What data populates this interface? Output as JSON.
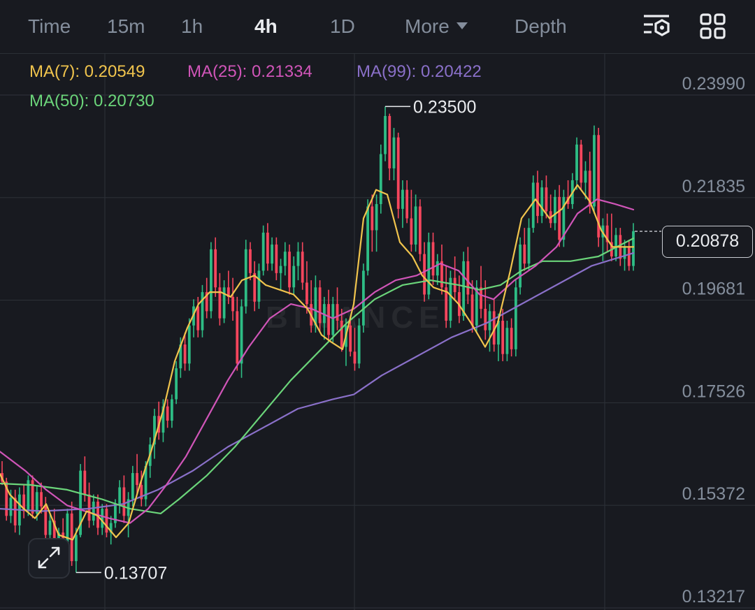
{
  "toolbar": {
    "time": "Time",
    "intervals": [
      "15m",
      "1h",
      "4h",
      "1D"
    ],
    "active_interval": "4h",
    "more": "More",
    "depth": "Depth",
    "icons": [
      "chart-settings-icon",
      "layout-grid-icon"
    ]
  },
  "indicators": {
    "ma7": {
      "label": "MA(7): 0.20549",
      "color": "#f0c44d"
    },
    "ma25": {
      "label": "MA(25): 0.21334",
      "color": "#d055b8"
    },
    "ma99": {
      "label": "MA(99): 0.20422",
      "color": "#8a70c9"
    },
    "ma50": {
      "label": "MA(50): 0.20730",
      "color": "#6bd57a"
    }
  },
  "chart_data": {
    "type": "candlestick",
    "y_axis_ticks": [
      "0.23990",
      "0.21835",
      "0.19681",
      "0.17526",
      "0.15372",
      "0.13217"
    ],
    "ylim": [
      0.13217,
      0.2399
    ],
    "current_price": "0.20878",
    "high_marker": "0.23500",
    "low_marker": "0.13707",
    "watermark": "BINANCE",
    "colors": {
      "up": "#2ebd85",
      "down": "#f6465d",
      "grid": "#2b2f36"
    },
    "candles": [
      [
        0.158,
        0.1605,
        0.1555,
        0.1562
      ],
      [
        0.1562,
        0.157,
        0.148,
        0.149
      ],
      [
        0.149,
        0.1545,
        0.1475,
        0.1528
      ],
      [
        0.1528,
        0.1545,
        0.1455,
        0.147
      ],
      [
        0.147,
        0.155,
        0.145,
        0.1535
      ],
      [
        0.1535,
        0.1555,
        0.1485,
        0.15
      ],
      [
        0.15,
        0.1575,
        0.149,
        0.1565
      ],
      [
        0.1565,
        0.1575,
        0.1485,
        0.1495
      ],
      [
        0.1495,
        0.1555,
        0.148,
        0.154
      ],
      [
        0.154,
        0.156,
        0.1495,
        0.151
      ],
      [
        0.151,
        0.153,
        0.1435,
        0.145
      ],
      [
        0.145,
        0.1495,
        0.143,
        0.148
      ],
      [
        0.148,
        0.1505,
        0.1415,
        0.1425
      ],
      [
        0.1425,
        0.1465,
        0.1395,
        0.1455
      ],
      [
        0.1455,
        0.1485,
        0.1395,
        0.1415
      ],
      [
        0.1415,
        0.1505,
        0.1405,
        0.1495
      ],
      [
        0.1495,
        0.152,
        0.1385,
        0.1395
      ],
      [
        0.1395,
        0.1465,
        0.1371,
        0.145
      ],
      [
        0.145,
        0.1599,
        0.1445,
        0.1585
      ],
      [
        0.1585,
        0.1615,
        0.152,
        0.1535
      ],
      [
        0.1535,
        0.156,
        0.1465,
        0.148
      ],
      [
        0.148,
        0.1535,
        0.147,
        0.152
      ],
      [
        0.152,
        0.1535,
        0.145,
        0.1465
      ],
      [
        0.1465,
        0.1515,
        0.145,
        0.1505
      ],
      [
        0.1505,
        0.1515,
        0.1445,
        0.1455
      ],
      [
        0.1455,
        0.149,
        0.143,
        0.1475
      ],
      [
        0.1475,
        0.1525,
        0.1465,
        0.1515
      ],
      [
        0.1515,
        0.1565,
        0.1495,
        0.155
      ],
      [
        0.155,
        0.1575,
        0.1475,
        0.149
      ],
      [
        0.149,
        0.154,
        0.1445,
        0.1525
      ],
      [
        0.1525,
        0.1595,
        0.151,
        0.158
      ],
      [
        0.158,
        0.162,
        0.1535,
        0.1555
      ],
      [
        0.1555,
        0.1585,
        0.151,
        0.1525
      ],
      [
        0.1525,
        0.1605,
        0.151,
        0.1595
      ],
      [
        0.1595,
        0.1655,
        0.157,
        0.164
      ],
      [
        0.164,
        0.1715,
        0.161,
        0.17
      ],
      [
        0.17,
        0.173,
        0.165,
        0.1665
      ],
      [
        0.1665,
        0.1735,
        0.1645,
        0.172
      ],
      [
        0.172,
        0.1735,
        0.1675,
        0.169
      ],
      [
        0.169,
        0.1745,
        0.1675,
        0.1735
      ],
      [
        0.1735,
        0.1815,
        0.1725,
        0.18
      ],
      [
        0.18,
        0.1865,
        0.178,
        0.185
      ],
      [
        0.185,
        0.1875,
        0.1795,
        0.181
      ],
      [
        0.181,
        0.1905,
        0.1795,
        0.189
      ],
      [
        0.189,
        0.1945,
        0.1865,
        0.193
      ],
      [
        0.193,
        0.195,
        0.1865,
        0.188
      ],
      [
        0.188,
        0.1975,
        0.1865,
        0.196
      ],
      [
        0.196,
        0.199,
        0.1905,
        0.192
      ],
      [
        0.192,
        0.2065,
        0.1905,
        0.205
      ],
      [
        0.205,
        0.2075,
        0.195,
        0.197
      ],
      [
        0.197,
        0.2,
        0.189,
        0.1905
      ],
      [
        0.1905,
        0.1985,
        0.1895,
        0.197
      ],
      [
        0.197,
        0.2005,
        0.1935,
        0.195
      ],
      [
        0.195,
        0.199,
        0.19,
        0.192
      ],
      [
        0.192,
        0.195,
        0.1795,
        0.181
      ],
      [
        0.181,
        0.1945,
        0.178,
        0.193
      ],
      [
        0.193,
        0.207,
        0.1915,
        0.205
      ],
      [
        0.205,
        0.2065,
        0.1985,
        0.2
      ],
      [
        0.2,
        0.2025,
        0.192,
        0.194
      ],
      [
        0.194,
        0.202,
        0.1925,
        0.2005
      ],
      [
        0.2005,
        0.21,
        0.1995,
        0.2085
      ],
      [
        0.2085,
        0.2105,
        0.2005,
        0.202
      ],
      [
        0.202,
        0.2075,
        0.2005,
        0.206
      ],
      [
        0.206,
        0.2075,
        0.1985,
        0.2
      ],
      [
        0.2,
        0.203,
        0.1965,
        0.2015
      ],
      [
        0.2015,
        0.2065,
        0.1995,
        0.2045
      ],
      [
        0.2045,
        0.206,
        0.1955,
        0.197
      ],
      [
        0.197,
        0.2035,
        0.1955,
        0.2015
      ],
      [
        0.2015,
        0.2065,
        0.1985,
        0.2045
      ],
      [
        0.2045,
        0.2065,
        0.1965,
        0.198
      ],
      [
        0.198,
        0.2025,
        0.1915,
        0.1935
      ],
      [
        0.1935,
        0.1985,
        0.1875,
        0.189
      ],
      [
        0.189,
        0.1995,
        0.1875,
        0.197
      ],
      [
        0.197,
        0.1985,
        0.1875,
        0.1895
      ],
      [
        0.1895,
        0.195,
        0.186,
        0.1935
      ],
      [
        0.1935,
        0.1965,
        0.1855,
        0.187
      ],
      [
        0.187,
        0.195,
        0.1855,
        0.1935
      ],
      [
        0.1935,
        0.197,
        0.188,
        0.19
      ],
      [
        0.19,
        0.1925,
        0.1835,
        0.1845
      ],
      [
        0.1845,
        0.1905,
        0.1805,
        0.189
      ],
      [
        0.189,
        0.1905,
        0.1825,
        0.1835
      ],
      [
        0.1835,
        0.1885,
        0.1795,
        0.181
      ],
      [
        0.181,
        0.1905,
        0.18,
        0.189
      ],
      [
        0.189,
        0.202,
        0.1875,
        0.2005
      ],
      [
        0.2005,
        0.2155,
        0.1995,
        0.214
      ],
      [
        0.214,
        0.2165,
        0.2045,
        0.209
      ],
      [
        0.209,
        0.2165,
        0.2045,
        0.2145
      ],
      [
        0.2145,
        0.227,
        0.2125,
        0.225
      ],
      [
        0.225,
        0.235,
        0.2235,
        0.233
      ],
      [
        0.233,
        0.2335,
        0.2195,
        0.222
      ],
      [
        0.222,
        0.2305,
        0.2195,
        0.2285
      ],
      [
        0.2285,
        0.2295,
        0.2115,
        0.2135
      ],
      [
        0.2135,
        0.2195,
        0.2095,
        0.2175
      ],
      [
        0.2175,
        0.2195,
        0.2105,
        0.2115
      ],
      [
        0.2115,
        0.2175,
        0.2045,
        0.206
      ],
      [
        0.206,
        0.2165,
        0.2045,
        0.214
      ],
      [
        0.214,
        0.2155,
        0.2025,
        0.204
      ],
      [
        0.204,
        0.2065,
        0.194,
        0.1955
      ],
      [
        0.1955,
        0.2085,
        0.1945,
        0.2065
      ],
      [
        0.2065,
        0.2085,
        0.1975,
        0.1995
      ],
      [
        0.1995,
        0.204,
        0.1975,
        0.2025
      ],
      [
        0.2025,
        0.206,
        0.1955,
        0.197
      ],
      [
        0.197,
        0.2015,
        0.1885,
        0.19
      ],
      [
        0.19,
        0.2005,
        0.1885,
        0.199
      ],
      [
        0.199,
        0.2035,
        0.1945,
        0.196
      ],
      [
        0.196,
        0.1995,
        0.1895,
        0.191
      ],
      [
        0.191,
        0.2045,
        0.19,
        0.2025
      ],
      [
        0.2025,
        0.2055,
        0.1935,
        0.1955
      ],
      [
        0.1955,
        0.1985,
        0.1875,
        0.189
      ],
      [
        0.189,
        0.1985,
        0.1875,
        0.197
      ],
      [
        0.197,
        0.2015,
        0.1905,
        0.1925
      ],
      [
        0.1925,
        0.1985,
        0.186,
        0.188
      ],
      [
        0.188,
        0.1935,
        0.1835,
        0.192
      ],
      [
        0.192,
        0.1945,
        0.1835,
        0.185
      ],
      [
        0.185,
        0.1915,
        0.1815,
        0.19
      ],
      [
        0.19,
        0.1925,
        0.1815,
        0.183
      ],
      [
        0.183,
        0.19,
        0.1815,
        0.1885
      ],
      [
        0.1885,
        0.1905,
        0.1825,
        0.184
      ],
      [
        0.184,
        0.1985,
        0.1825,
        0.197
      ],
      [
        0.197,
        0.2075,
        0.1955,
        0.206
      ],
      [
        0.206,
        0.2095,
        0.2005,
        0.202
      ],
      [
        0.202,
        0.2115,
        0.2005,
        0.2095
      ],
      [
        0.2095,
        0.2205,
        0.2085,
        0.219
      ],
      [
        0.219,
        0.2215,
        0.2105,
        0.212
      ],
      [
        0.212,
        0.2195,
        0.2105,
        0.218
      ],
      [
        0.218,
        0.2205,
        0.2115,
        0.213
      ],
      [
        0.213,
        0.2165,
        0.2095,
        0.2105
      ],
      [
        0.2105,
        0.2175,
        0.209,
        0.216
      ],
      [
        0.216,
        0.2185,
        0.2055,
        0.207
      ],
      [
        0.207,
        0.2175,
        0.2055,
        0.216
      ],
      [
        0.216,
        0.2195,
        0.2135,
        0.2145
      ],
      [
        0.2145,
        0.221,
        0.2135,
        0.2195
      ],
      [
        0.2195,
        0.2285,
        0.2175,
        0.227
      ],
      [
        0.227,
        0.228,
        0.2175,
        0.219
      ],
      [
        0.219,
        0.2235,
        0.2155,
        0.2215
      ],
      [
        0.2215,
        0.2255,
        0.2125,
        0.214
      ],
      [
        0.214,
        0.231,
        0.2125,
        0.229
      ],
      [
        0.229,
        0.2305,
        0.2055,
        0.2075
      ],
      [
        0.2075,
        0.2115,
        0.2025,
        0.21
      ],
      [
        0.21,
        0.2125,
        0.2045,
        0.2065
      ],
      [
        0.2065,
        0.2125,
        0.2025,
        0.2035
      ],
      [
        0.2035,
        0.2095,
        0.2025,
        0.208
      ],
      [
        0.208,
        0.2095,
        0.2015,
        0.203
      ],
      [
        0.203,
        0.207,
        0.2005,
        0.2055
      ],
      [
        0.2055,
        0.207,
        0.2005,
        0.2015
      ],
      [
        0.2015,
        0.2105,
        0.2005,
        0.2088
      ]
    ],
    "series": {
      "ma7": [
        [
          0,
          0.1578
        ],
        [
          14,
          0.1535
        ],
        [
          34,
          0.1505
        ],
        [
          50,
          0.1485
        ],
        [
          66,
          0.1515
        ],
        [
          84,
          0.145
        ],
        [
          104,
          0.144
        ],
        [
          124,
          0.15
        ],
        [
          140,
          0.149
        ],
        [
          166,
          0.1445
        ],
        [
          184,
          0.1475
        ],
        [
          200,
          0.1555
        ],
        [
          216,
          0.1625
        ],
        [
          234,
          0.1715
        ],
        [
          250,
          0.1815
        ],
        [
          268,
          0.1885
        ],
        [
          284,
          0.1935
        ],
        [
          300,
          0.196
        ],
        [
          316,
          0.196
        ],
        [
          330,
          0.195
        ],
        [
          346,
          0.1985
        ],
        [
          364,
          0.1995
        ],
        [
          380,
          0.1975
        ],
        [
          400,
          0.1965
        ],
        [
          420,
          0.1955
        ],
        [
          440,
          0.1925
        ],
        [
          460,
          0.187
        ],
        [
          474,
          0.1855
        ],
        [
          490,
          0.184
        ],
        [
          506,
          0.1935
        ],
        [
          520,
          0.2115
        ],
        [
          538,
          0.2175
        ],
        [
          554,
          0.2165
        ],
        [
          572,
          0.2065
        ],
        [
          590,
          0.2035
        ],
        [
          604,
          0.1995
        ],
        [
          620,
          0.197
        ],
        [
          640,
          0.196
        ],
        [
          656,
          0.1935
        ],
        [
          676,
          0.189
        ],
        [
          694,
          0.1845
        ],
        [
          712,
          0.1895
        ],
        [
          730,
          0.2005
        ],
        [
          746,
          0.2115
        ],
        [
          766,
          0.2155
        ],
        [
          786,
          0.2115
        ],
        [
          804,
          0.2135
        ],
        [
          826,
          0.2185
        ],
        [
          844,
          0.215
        ],
        [
          860,
          0.209
        ],
        [
          876,
          0.2055
        ],
        [
          894,
          0.2055
        ],
        [
          906,
          0.20549
        ]
      ],
      "ma25": [
        [
          0,
          0.1625
        ],
        [
          36,
          0.1585
        ],
        [
          66,
          0.1545
        ],
        [
          96,
          0.1512
        ],
        [
          126,
          0.1498
        ],
        [
          156,
          0.1485
        ],
        [
          186,
          0.1475
        ],
        [
          212,
          0.1505
        ],
        [
          238,
          0.1555
        ],
        [
          266,
          0.1615
        ],
        [
          296,
          0.1695
        ],
        [
          326,
          0.1775
        ],
        [
          356,
          0.1845
        ],
        [
          386,
          0.1905
        ],
        [
          416,
          0.1935
        ],
        [
          446,
          0.1925
        ],
        [
          476,
          0.1905
        ],
        [
          506,
          0.1925
        ],
        [
          536,
          0.196
        ],
        [
          566,
          0.1985
        ],
        [
          596,
          0.1995
        ],
        [
          630,
          0.202
        ],
        [
          656,
          0.2005
        ],
        [
          686,
          0.1955
        ],
        [
          706,
          0.1945
        ],
        [
          736,
          0.1985
        ],
        [
          766,
          0.2015
        ],
        [
          796,
          0.2055
        ],
        [
          826,
          0.2125
        ],
        [
          854,
          0.2155
        ],
        [
          880,
          0.2145
        ],
        [
          906,
          0.21334
        ]
      ],
      "ma50": [
        [
          0,
          0.1558
        ],
        [
          44,
          0.1555
        ],
        [
          96,
          0.1545
        ],
        [
          146,
          0.1525
        ],
        [
          186,
          0.1505
        ],
        [
          230,
          0.1495
        ],
        [
          256,
          0.1525
        ],
        [
          296,
          0.1575
        ],
        [
          336,
          0.1635
        ],
        [
          376,
          0.1705
        ],
        [
          416,
          0.1775
        ],
        [
          456,
          0.1835
        ],
        [
          496,
          0.1895
        ],
        [
          536,
          0.1945
        ],
        [
          576,
          0.1975
        ],
        [
          616,
          0.1985
        ],
        [
          656,
          0.1975
        ],
        [
          686,
          0.1965
        ],
        [
          716,
          0.1975
        ],
        [
          746,
          0.2005
        ],
        [
          776,
          0.2025
        ],
        [
          816,
          0.2025
        ],
        [
          856,
          0.2035
        ],
        [
          906,
          0.2073
        ]
      ],
      "ma99": [
        [
          0,
          0.1505
        ],
        [
          60,
          0.15
        ],
        [
          126,
          0.1505
        ],
        [
          176,
          0.1515
        ],
        [
          226,
          0.1545
        ],
        [
          276,
          0.1585
        ],
        [
          326,
          0.1635
        ],
        [
          376,
          0.1675
        ],
        [
          426,
          0.1715
        ],
        [
          476,
          0.1735
        ],
        [
          506,
          0.1745
        ],
        [
          546,
          0.1785
        ],
        [
          596,
          0.1825
        ],
        [
          646,
          0.1865
        ],
        [
          696,
          0.1895
        ],
        [
          746,
          0.1935
        ],
        [
          796,
          0.1975
        ],
        [
          846,
          0.2015
        ],
        [
          906,
          0.20422
        ]
      ]
    }
  }
}
